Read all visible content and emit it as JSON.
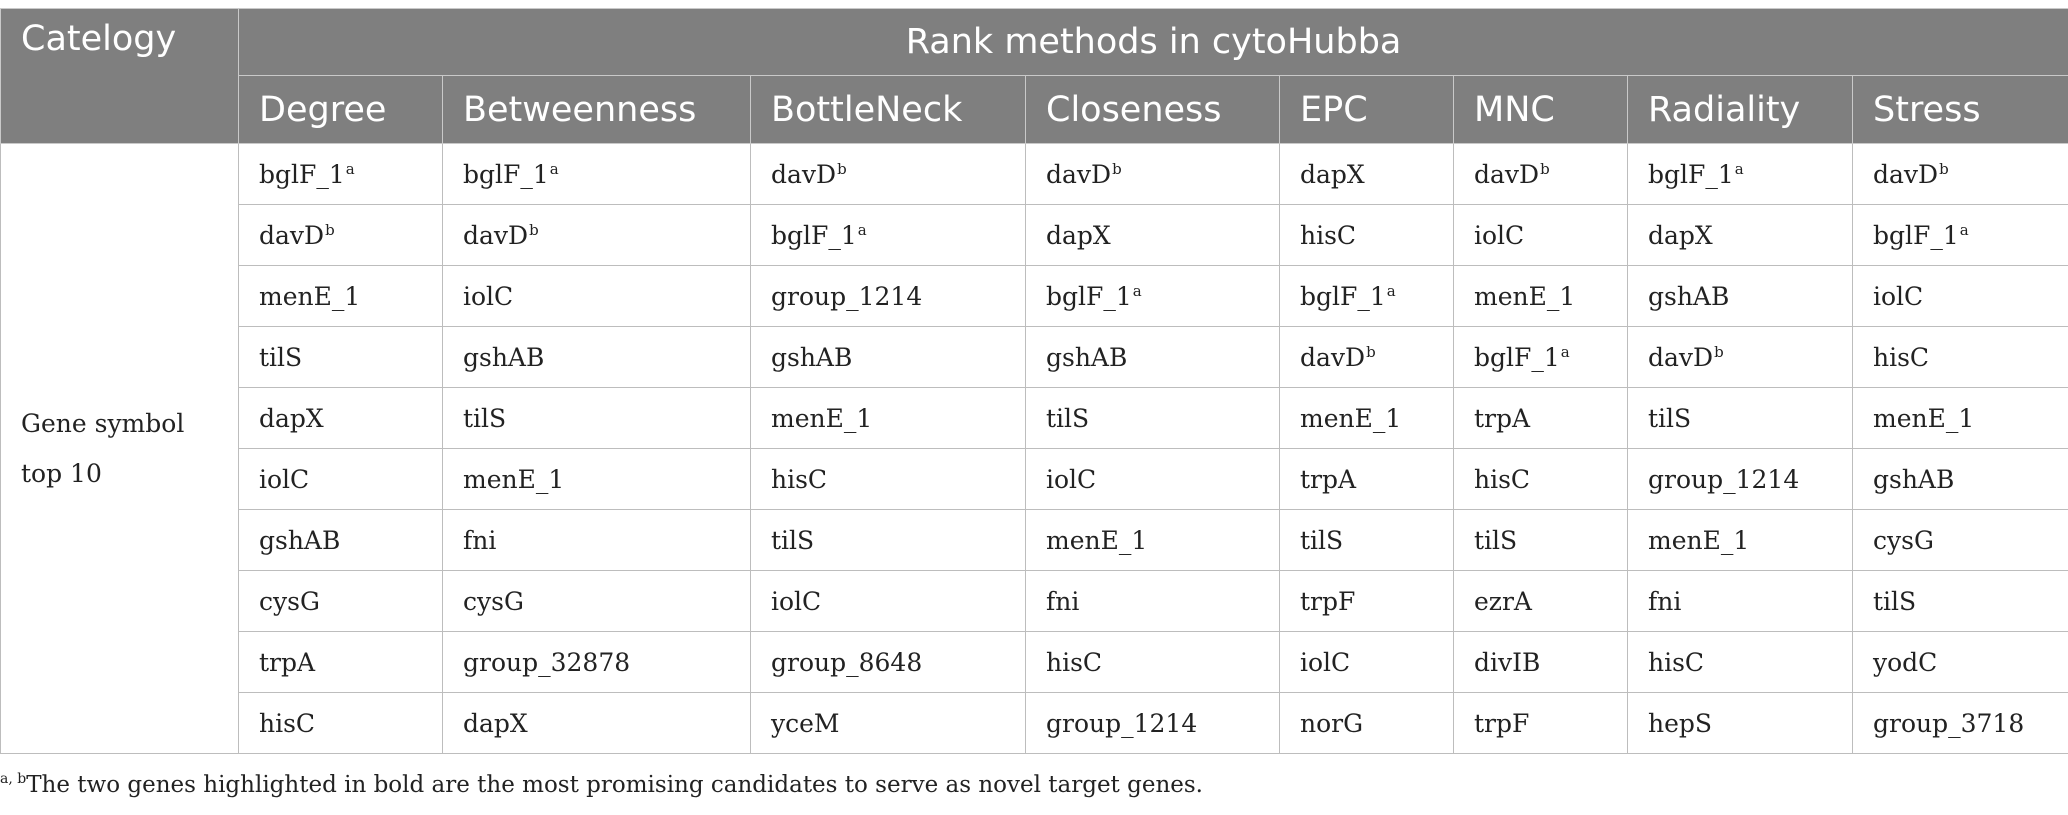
{
  "table": {
    "corner_header": "Catelogy",
    "group_header": "Rank methods in cytoHubba",
    "columns": [
      "Degree",
      "Betweenness",
      "BottleNeck",
      "Closeness",
      "EPC",
      "MNC",
      "Radiality",
      "Stress"
    ],
    "category_label_line1": "Gene symbol",
    "category_label_line2": "top 10",
    "rows": [
      [
        [
          "bglF_1",
          "a"
        ],
        [
          "bglF_1",
          "a"
        ],
        [
          "davD",
          "b"
        ],
        [
          "davD",
          "b"
        ],
        [
          "dapX",
          ""
        ],
        [
          "davD",
          "b"
        ],
        [
          "bglF_1",
          "a"
        ],
        [
          "davD",
          "b"
        ]
      ],
      [
        [
          "davD",
          "b"
        ],
        [
          "davD",
          "b"
        ],
        [
          "bglF_1",
          "a"
        ],
        [
          "dapX",
          ""
        ],
        [
          "hisC",
          ""
        ],
        [
          "iolC",
          ""
        ],
        [
          "dapX",
          ""
        ],
        [
          "bglF_1",
          "a"
        ]
      ],
      [
        [
          "menE_1",
          ""
        ],
        [
          "iolC",
          ""
        ],
        [
          "group_1214",
          ""
        ],
        [
          "bglF_1",
          "a"
        ],
        [
          "bglF_1",
          "a"
        ],
        [
          "menE_1",
          ""
        ],
        [
          "gshAB",
          ""
        ],
        [
          "iolC",
          ""
        ]
      ],
      [
        [
          "tilS",
          ""
        ],
        [
          "gshAB",
          ""
        ],
        [
          "gshAB",
          ""
        ],
        [
          "gshAB",
          ""
        ],
        [
          "davD",
          "b"
        ],
        [
          "bglF_1",
          "a"
        ],
        [
          "davD",
          "b"
        ],
        [
          "hisC",
          ""
        ]
      ],
      [
        [
          "dapX",
          ""
        ],
        [
          "tilS",
          ""
        ],
        [
          "menE_1",
          ""
        ],
        [
          "tilS",
          ""
        ],
        [
          "menE_1",
          ""
        ],
        [
          "trpA",
          ""
        ],
        [
          "tilS",
          ""
        ],
        [
          "menE_1",
          ""
        ]
      ],
      [
        [
          "iolC",
          ""
        ],
        [
          "menE_1",
          ""
        ],
        [
          "hisC",
          ""
        ],
        [
          "iolC",
          ""
        ],
        [
          "trpA",
          ""
        ],
        [
          "hisC",
          ""
        ],
        [
          "group_1214",
          ""
        ],
        [
          "gshAB",
          ""
        ]
      ],
      [
        [
          "gshAB",
          ""
        ],
        [
          "fni",
          ""
        ],
        [
          "tilS",
          ""
        ],
        [
          "menE_1",
          ""
        ],
        [
          "tilS",
          ""
        ],
        [
          "tilS",
          ""
        ],
        [
          "menE_1",
          ""
        ],
        [
          "cysG",
          ""
        ]
      ],
      [
        [
          "cysG",
          ""
        ],
        [
          "cysG",
          ""
        ],
        [
          "iolC",
          ""
        ],
        [
          "fni",
          ""
        ],
        [
          "trpF",
          ""
        ],
        [
          "ezrA",
          ""
        ],
        [
          "fni",
          ""
        ],
        [
          "tilS",
          ""
        ]
      ],
      [
        [
          "trpA",
          ""
        ],
        [
          "group_32878",
          ""
        ],
        [
          "group_8648",
          ""
        ],
        [
          "hisC",
          ""
        ],
        [
          "iolC",
          ""
        ],
        [
          "divIB",
          ""
        ],
        [
          "hisC",
          ""
        ],
        [
          "yodC",
          ""
        ]
      ],
      [
        [
          "hisC",
          ""
        ],
        [
          "dapX",
          ""
        ],
        [
          "yceM",
          ""
        ],
        [
          "group_1214",
          ""
        ],
        [
          "norG",
          ""
        ],
        [
          "trpF",
          ""
        ],
        [
          "hepS",
          ""
        ],
        [
          "group_3718",
          ""
        ]
      ]
    ]
  },
  "footnote": {
    "marks": "a, b",
    "text": "The two genes highlighted in bold are the most promising candidates to serve as novel target genes."
  },
  "colors": {
    "header_background": "#7f7f7f",
    "header_text": "#ffffff",
    "body_text": "#222222",
    "grid_lines": "#bdbdbd"
  }
}
